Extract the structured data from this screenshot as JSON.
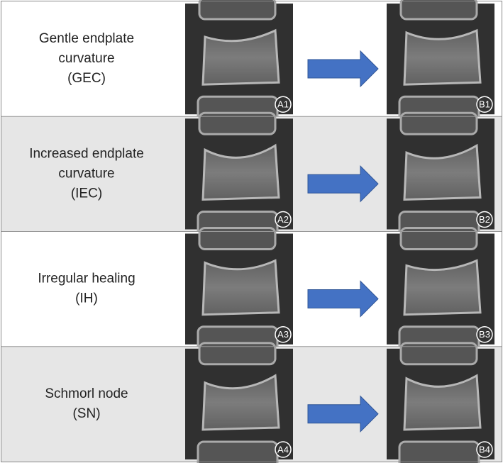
{
  "rows": [
    {
      "label": [
        "Gentle endplate",
        "curvature",
        "(GEC)"
      ],
      "before": "A1",
      "after": "B1"
    },
    {
      "label": [
        "Increased endplate",
        "curvature",
        "(IEC)"
      ],
      "before": "A2",
      "after": "B2"
    },
    {
      "label": [
        "Irregular healing",
        "(IH)"
      ],
      "before": "A3",
      "after": "B3"
    },
    {
      "label": [
        "Schmorl node",
        "(SN)"
      ],
      "before": "A4",
      "after": "B4"
    }
  ]
}
